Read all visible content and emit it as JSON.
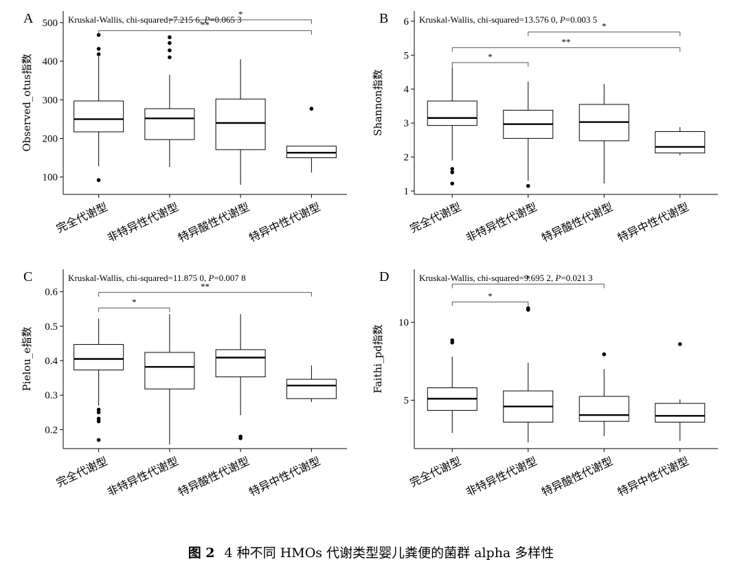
{
  "caption": {
    "figure_number": "图 2",
    "text": "4 种不同 HMOs 代谢类型婴儿粪便的菌群 alpha 多样性"
  },
  "chart_data": [
    {
      "panel": "A",
      "type": "box",
      "ylabel": "Observed_otus指数",
      "stat_prefix": "Kruskal-Wallis, chi-squared=7.215 6, ",
      "stat_p": "=0.065 3",
      "categories": [
        "完全代谢型",
        "非特异性代谢型",
        "特异酸性代谢型",
        "特异中性代谢型"
      ],
      "ylim": [
        55,
        530
      ],
      "yticks": [
        100,
        200,
        300,
        400,
        500
      ],
      "boxes": [
        {
          "whisker_low": 128,
          "q1": 217,
          "median": 250,
          "q3": 297,
          "whisker_high": 412,
          "outliers": [
            92,
            418,
            432,
            468
          ]
        },
        {
          "whisker_low": 126,
          "q1": 197,
          "median": 252,
          "q3": 277,
          "whisker_high": 365,
          "outliers": [
            410,
            428,
            447,
            462
          ]
        },
        {
          "whisker_low": 80,
          "q1": 171,
          "median": 240,
          "q3": 302,
          "whisker_high": 405,
          "outliers": []
        },
        {
          "whisker_low": 112,
          "q1": 150,
          "median": 163,
          "q3": 180,
          "whisker_high": 180,
          "outliers": [
            277
          ]
        }
      ],
      "comparisons": [
        {
          "from": 1,
          "to": 3,
          "y": 507,
          "label": "*"
        },
        {
          "from": 0,
          "to": 3,
          "y": 479,
          "label": "**"
        }
      ]
    },
    {
      "panel": "B",
      "type": "box",
      "ylabel": "Shannon指数",
      "stat_prefix": "Kruskal-Wallis, chi-squared=13.576 0, ",
      "stat_p": "=0.003 5",
      "categories": [
        "完全代谢型",
        "非特异性代谢型",
        "特异酸性代谢型",
        "特异中性代谢型"
      ],
      "ylim": [
        0.9,
        6.3
      ],
      "yticks": [
        1,
        2,
        3,
        4,
        5,
        6
      ],
      "boxes": [
        {
          "whisker_low": 1.9,
          "q1": 2.93,
          "median": 3.15,
          "q3": 3.65,
          "whisker_high": 4.65,
          "outliers": [
            1.22,
            1.55,
            1.65
          ]
        },
        {
          "whisker_low": 1.3,
          "q1": 2.55,
          "median": 2.97,
          "q3": 3.38,
          "whisker_high": 4.22,
          "outliers": [
            1.15
          ]
        },
        {
          "whisker_low": 1.22,
          "q1": 2.48,
          "median": 3.03,
          "q3": 3.55,
          "whisker_high": 4.15,
          "outliers": []
        },
        {
          "whisker_low": 2.05,
          "q1": 2.12,
          "median": 2.3,
          "q3": 2.75,
          "whisker_high": 2.88,
          "outliers": []
        }
      ],
      "comparisons": [
        {
          "from": 1,
          "to": 3,
          "y": 5.68,
          "label": "*"
        },
        {
          "from": 0,
          "to": 3,
          "y": 5.22,
          "label": "**"
        },
        {
          "from": 0,
          "to": 1,
          "y": 4.78,
          "label": "*"
        }
      ]
    },
    {
      "panel": "C",
      "type": "box",
      "ylabel": "Pielou_e指数",
      "stat_prefix": "Kruskal-Wallis, chi-squared=11.875 0, ",
      "stat_p": "=0.007 8",
      "categories": [
        "完全代谢型",
        "非特异性代谢型",
        "特异酸性代谢型",
        "特异中性代谢型"
      ],
      "ylim": [
        0.145,
        0.665
      ],
      "yticks": [
        0.2,
        0.3,
        0.4,
        0.5,
        0.6
      ],
      "yticklabels": [
        "0.2",
        "0.3",
        "0.4",
        "0.5",
        "0.6"
      ],
      "boxes": [
        {
          "whisker_low": 0.27,
          "q1": 0.373,
          "median": 0.405,
          "q3": 0.447,
          "whisker_high": 0.522,
          "outliers": [
            0.17,
            0.224,
            0.232,
            0.25,
            0.258
          ]
        },
        {
          "whisker_low": 0.157,
          "q1": 0.318,
          "median": 0.382,
          "q3": 0.424,
          "whisker_high": 0.535,
          "outliers": []
        },
        {
          "whisker_low": 0.242,
          "q1": 0.353,
          "median": 0.409,
          "q3": 0.432,
          "whisker_high": 0.535,
          "outliers": [
            0.175,
            0.18
          ]
        },
        {
          "whisker_low": 0.28,
          "q1": 0.29,
          "median": 0.328,
          "q3": 0.346,
          "whisker_high": 0.386,
          "outliers": []
        }
      ],
      "comparisons": [
        {
          "from": 0,
          "to": 3,
          "y": 0.598,
          "label": "**"
        },
        {
          "from": 0,
          "to": 1,
          "y": 0.553,
          "label": "*"
        }
      ]
    },
    {
      "panel": "D",
      "type": "box",
      "ylabel": "Faithi_pd指数",
      "stat_prefix": "Kruskal-Wallis, chi-squared=9.695 2, ",
      "stat_p": "=0.021 3",
      "categories": [
        "完全代谢型",
        "非特异性代谢型",
        "特异酸性代谢型",
        "特异中性代谢型"
      ],
      "ylim": [
        1.9,
        13.4
      ],
      "yticks": [
        5,
        10
      ],
      "boxes": [
        {
          "whisker_low": 2.9,
          "q1": 4.35,
          "median": 5.1,
          "q3": 5.8,
          "whisker_high": 7.8,
          "outliers": [
            8.7,
            8.85
          ]
        },
        {
          "whisker_low": 2.3,
          "q1": 3.6,
          "median": 4.6,
          "q3": 5.6,
          "whisker_high": 7.4,
          "outliers": [
            10.8,
            10.9
          ]
        },
        {
          "whisker_low": 2.7,
          "q1": 3.65,
          "median": 4.05,
          "q3": 5.25,
          "whisker_high": 7.0,
          "outliers": [
            7.95
          ]
        },
        {
          "whisker_low": 2.4,
          "q1": 3.6,
          "median": 4.0,
          "q3": 4.8,
          "whisker_high": 5.05,
          "outliers": [
            8.6
          ]
        }
      ],
      "comparisons": [
        {
          "from": 0,
          "to": 2,
          "y": 12.45,
          "label": "*"
        },
        {
          "from": 0,
          "to": 1,
          "y": 11.3,
          "label": "*"
        }
      ]
    }
  ]
}
